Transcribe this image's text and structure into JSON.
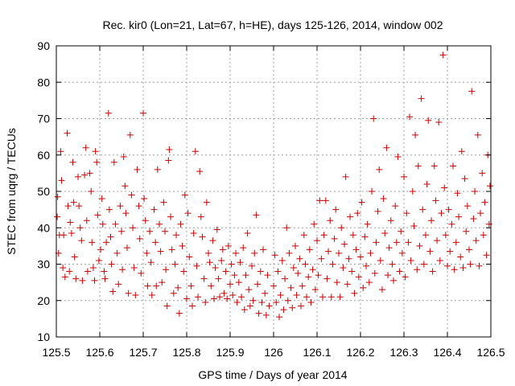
{
  "chart_data": {
    "type": "scatter",
    "title": "Rec. kir0 (Lon=21, Lat=67, h=HE), days 125-126, 2014, window 002",
    "xlabel": "GPS time / Days of year 2014",
    "ylabel": "STEC from uqrg / TECUs",
    "xlim": [
      125.5,
      126.5
    ],
    "ylim": [
      10,
      90
    ],
    "xticks": [
      125.5,
      125.6,
      125.7,
      125.8,
      125.9,
      126.0,
      126.1,
      126.2,
      126.3,
      126.4,
      126.5
    ],
    "xtick_labels": [
      "125.5",
      "125.6",
      "125.7",
      "125.8",
      "125.9",
      "126",
      "126.1",
      "126.2",
      "126.3",
      "126.4",
      "126.5"
    ],
    "yticks": [
      10,
      20,
      30,
      40,
      50,
      60,
      70,
      80,
      90
    ],
    "ytick_labels": [
      "10",
      "20",
      "30",
      "40",
      "50",
      "60",
      "70",
      "80",
      "90"
    ],
    "grid": true,
    "marker": "+",
    "color": "#cc0000",
    "series": [
      {
        "points": [
          [
            125.502,
            43
          ],
          [
            125.503,
            48.5
          ],
          [
            125.505,
            33
          ],
          [
            125.507,
            38
          ],
          [
            125.51,
            61
          ],
          [
            125.512,
            53
          ],
          [
            125.515,
            29
          ],
          [
            125.517,
            38
          ],
          [
            125.52,
            26.5
          ],
          [
            125.525,
            66
          ],
          [
            125.527,
            46
          ],
          [
            125.53,
            28
          ],
          [
            125.532,
            41.5
          ],
          [
            125.535,
            38.5
          ],
          [
            125.538,
            58
          ],
          [
            125.54,
            47
          ],
          [
            125.542,
            32
          ],
          [
            125.545,
            26
          ],
          [
            125.55,
            54
          ],
          [
            125.552,
            46
          ],
          [
            125.555,
            40
          ],
          [
            125.558,
            36.5
          ],
          [
            125.56,
            25.5
          ],
          [
            125.565,
            54.5
          ],
          [
            125.568,
            62
          ],
          [
            125.57,
            42
          ],
          [
            125.572,
            28
          ],
          [
            125.577,
            55
          ],
          [
            125.58,
            50
          ],
          [
            125.582,
            36
          ],
          [
            125.585,
            29
          ],
          [
            125.588,
            25.5
          ],
          [
            125.59,
            61
          ],
          [
            125.593,
            58
          ],
          [
            125.595,
            43.5
          ],
          [
            125.598,
            31
          ],
          [
            125.602,
            34
          ],
          [
            125.605,
            48
          ],
          [
            125.607,
            41
          ],
          [
            125.61,
            28
          ],
          [
            125.612,
            26
          ],
          [
            125.615,
            36
          ],
          [
            125.62,
            71.5
          ],
          [
            125.622,
            45
          ],
          [
            125.625,
            37.5
          ],
          [
            125.627,
            30
          ],
          [
            125.63,
            22.5
          ],
          [
            125.633,
            58
          ],
          [
            125.636,
            41
          ],
          [
            125.64,
            33
          ],
          [
            125.643,
            24.5
          ],
          [
            125.647,
            46
          ],
          [
            125.65,
            39
          ],
          [
            125.652,
            28.5
          ],
          [
            125.655,
            59.5
          ],
          [
            125.658,
            51.5
          ],
          [
            125.66,
            44
          ],
          [
            125.663,
            34.5
          ],
          [
            125.666,
            22
          ],
          [
            125.67,
            65.5
          ],
          [
            125.673,
            49
          ],
          [
            125.676,
            40
          ],
          [
            125.679,
            29
          ],
          [
            125.682,
            21.5
          ],
          [
            125.686,
            56
          ],
          [
            125.69,
            46
          ],
          [
            125.692,
            37
          ],
          [
            125.695,
            27.5
          ],
          [
            125.7,
            71.5
          ],
          [
            125.702,
            48
          ],
          [
            125.705,
            42
          ],
          [
            125.708,
            33
          ],
          [
            125.71,
            24
          ],
          [
            125.715,
            39
          ],
          [
            125.718,
            30.5
          ],
          [
            125.72,
            21.5
          ],
          [
            125.725,
            45
          ],
          [
            125.728,
            36
          ],
          [
            125.73,
            24
          ],
          [
            125.733,
            56
          ],
          [
            125.737,
            41
          ],
          [
            125.74,
            33.5
          ],
          [
            125.743,
            25
          ],
          [
            125.747,
            47
          ],
          [
            125.75,
            39
          ],
          [
            125.752,
            28.5
          ],
          [
            125.755,
            18.5
          ],
          [
            125.758,
            58.5
          ],
          [
            125.76,
            61.5
          ],
          [
            125.763,
            43
          ],
          [
            125.766,
            34
          ],
          [
            125.77,
            22
          ],
          [
            125.773,
            30
          ],
          [
            125.776,
            38
          ],
          [
            125.78,
            23.5
          ],
          [
            125.783,
            16.5
          ],
          [
            125.786,
            41
          ],
          [
            125.79,
            35
          ],
          [
            125.793,
            28
          ],
          [
            125.796,
            49
          ],
          [
            125.8,
            20.5
          ],
          [
            125.803,
            44
          ],
          [
            125.806,
            32
          ],
          [
            125.81,
            24
          ],
          [
            125.813,
            18.5
          ],
          [
            125.816,
            38.5
          ],
          [
            125.82,
            61
          ],
          [
            125.823,
            29.5
          ],
          [
            125.826,
            21
          ],
          [
            125.83,
            55.5
          ],
          [
            125.833,
            43
          ],
          [
            125.836,
            37.5
          ],
          [
            125.84,
            26
          ],
          [
            125.843,
            19.5
          ],
          [
            125.846,
            47
          ],
          [
            125.85,
            33
          ],
          [
            125.853,
            30.5
          ],
          [
            125.856,
            24
          ],
          [
            125.86,
            36.5
          ],
          [
            125.863,
            20.5
          ],
          [
            125.866,
            29
          ],
          [
            125.87,
            39.5
          ],
          [
            125.873,
            26
          ],
          [
            125.876,
            21
          ],
          [
            125.88,
            31
          ],
          [
            125.883,
            34
          ],
          [
            125.886,
            22
          ],
          [
            125.89,
            28
          ],
          [
            125.893,
            20.5
          ],
          [
            125.896,
            35
          ],
          [
            125.9,
            24.5
          ],
          [
            125.903,
            30
          ],
          [
            125.906,
            21.5
          ],
          [
            125.91,
            27
          ],
          [
            125.913,
            33
          ],
          [
            125.916,
            19.5
          ],
          [
            125.92,
            25
          ],
          [
            125.923,
            30.5
          ],
          [
            125.926,
            21
          ],
          [
            125.93,
            34.5
          ],
          [
            125.933,
            17.5
          ],
          [
            125.936,
            27
          ],
          [
            125.94,
            38.5
          ],
          [
            125.943,
            23
          ],
          [
            125.946,
            18.5
          ],
          [
            125.95,
            29.5
          ],
          [
            125.953,
            20
          ],
          [
            125.956,
            33
          ],
          [
            125.96,
            43.5
          ],
          [
            125.963,
            24.5
          ],
          [
            125.966,
            16.5
          ],
          [
            125.97,
            28
          ],
          [
            125.973,
            19.5
          ],
          [
            125.976,
            34
          ],
          [
            125.98,
            22
          ],
          [
            125.983,
            16
          ],
          [
            125.986,
            27
          ],
          [
            125.99,
            18.5
          ],
          [
            126.0,
            24
          ],
          [
            126.003,
            32.5
          ],
          [
            126.006,
            19.5
          ],
          [
            126.01,
            28
          ],
          [
            126.013,
            15.5
          ],
          [
            126.016,
            21.5
          ],
          [
            126.02,
            31
          ],
          [
            126.023,
            17.5
          ],
          [
            126.026,
            26
          ],
          [
            126.03,
            40
          ],
          [
            126.033,
            20
          ],
          [
            126.036,
            33
          ],
          [
            126.04,
            23.5
          ],
          [
            126.043,
            18
          ],
          [
            126.046,
            29
          ],
          [
            126.05,
            35
          ],
          [
            126.053,
            21.5
          ],
          [
            126.056,
            27.5
          ],
          [
            126.06,
            31.5
          ],
          [
            126.063,
            18.5
          ],
          [
            126.066,
            24
          ],
          [
            126.07,
            38
          ],
          [
            126.073,
            30
          ],
          [
            126.076,
            21
          ],
          [
            126.08,
            26.5
          ],
          [
            126.083,
            34
          ],
          [
            126.086,
            19.5
          ],
          [
            126.09,
            28.5
          ],
          [
            126.093,
            41
          ],
          [
            126.096,
            23
          ],
          [
            126.1,
            36.5
          ],
          [
            126.103,
            27
          ],
          [
            126.106,
            47.5
          ],
          [
            126.11,
            31.5
          ],
          [
            126.113,
            21
          ],
          [
            126.116,
            38
          ],
          [
            126.12,
            47.5
          ],
          [
            126.123,
            26
          ],
          [
            126.126,
            33.5
          ],
          [
            126.13,
            42
          ],
          [
            126.133,
            21
          ],
          [
            126.136,
            30
          ],
          [
            126.14,
            37
          ],
          [
            126.143,
            45
          ],
          [
            126.146,
            25
          ],
          [
            126.15,
            33
          ],
          [
            126.153,
            21
          ],
          [
            126.156,
            40
          ],
          [
            126.16,
            29
          ],
          [
            126.163,
            35.5
          ],
          [
            126.166,
            54
          ],
          [
            126.17,
            24.5
          ],
          [
            126.173,
            31.5
          ],
          [
            126.176,
            43
          ],
          [
            126.18,
            28
          ],
          [
            126.183,
            38
          ],
          [
            126.186,
            22
          ],
          [
            126.19,
            34
          ],
          [
            126.193,
            44
          ],
          [
            126.196,
            26.5
          ],
          [
            126.2,
            32
          ],
          [
            126.203,
            47
          ],
          [
            126.206,
            23.5
          ],
          [
            126.21,
            37.5
          ],
          [
            126.213,
            29.5
          ],
          [
            126.216,
            41
          ],
          [
            126.22,
            25
          ],
          [
            126.223,
            33
          ],
          [
            126.226,
            50
          ],
          [
            126.23,
            70
          ],
          [
            126.233,
            27.5
          ],
          [
            126.236,
            36
          ],
          [
            126.24,
            44.5
          ],
          [
            126.243,
            56
          ],
          [
            126.246,
            31
          ],
          [
            126.25,
            23
          ],
          [
            126.253,
            48
          ],
          [
            126.256,
            38.5
          ],
          [
            126.26,
            62
          ],
          [
            126.263,
            27
          ],
          [
            126.266,
            34.5
          ],
          [
            126.27,
            42
          ],
          [
            126.273,
            30
          ],
          [
            126.276,
            25.5
          ],
          [
            126.28,
            46
          ],
          [
            126.283,
            36
          ],
          [
            126.286,
            59.5
          ],
          [
            126.29,
            28
          ],
          [
            126.293,
            39
          ],
          [
            126.296,
            33
          ],
          [
            126.3,
            54
          ],
          [
            126.303,
            26.5
          ],
          [
            126.306,
            44
          ],
          [
            126.31,
            36
          ],
          [
            126.313,
            70.5
          ],
          [
            126.316,
            31
          ],
          [
            126.32,
            50
          ],
          [
            126.323,
            40.5
          ],
          [
            126.326,
            65.5
          ],
          [
            126.33,
            28.5
          ],
          [
            126.333,
            57
          ],
          [
            126.336,
            35
          ],
          [
            126.34,
            75.5
          ],
          [
            126.343,
            45
          ],
          [
            126.346,
            30
          ],
          [
            126.35,
            38
          ],
          [
            126.353,
            52
          ],
          [
            126.356,
            69.5
          ],
          [
            126.36,
            33.5
          ],
          [
            126.363,
            42
          ],
          [
            126.366,
            28
          ],
          [
            126.37,
            57
          ],
          [
            126.373,
            47.5
          ],
          [
            126.376,
            36.5
          ],
          [
            126.38,
            69
          ],
          [
            126.383,
            31
          ],
          [
            126.386,
            44
          ],
          [
            126.39,
            87.5
          ],
          [
            126.393,
            51
          ],
          [
            126.396,
            38
          ],
          [
            126.4,
            29.5
          ],
          [
            126.403,
            45
          ],
          [
            126.406,
            33.5
          ],
          [
            126.41,
            41
          ],
          [
            126.413,
            57
          ],
          [
            126.416,
            28.5
          ],
          [
            126.42,
            36
          ],
          [
            126.423,
            49.5
          ],
          [
            126.426,
            43
          ],
          [
            126.43,
            32
          ],
          [
            126.433,
            61
          ],
          [
            126.436,
            29
          ],
          [
            126.44,
            53.5
          ],
          [
            126.443,
            39
          ],
          [
            126.446,
            46
          ],
          [
            126.45,
            34
          ],
          [
            126.453,
            30
          ],
          [
            126.456,
            77.5
          ],
          [
            126.46,
            42.5
          ],
          [
            126.463,
            50
          ],
          [
            126.466,
            36.5
          ],
          [
            126.47,
            65.5
          ],
          [
            126.473,
            29.5
          ],
          [
            126.476,
            44
          ],
          [
            126.48,
            55
          ],
          [
            126.483,
            38
          ],
          [
            126.486,
            47
          ],
          [
            126.49,
            32.5
          ],
          [
            126.493,
            60
          ],
          [
            126.496,
            41
          ],
          [
            126.498,
            51.5
          ]
        ]
      }
    ]
  }
}
